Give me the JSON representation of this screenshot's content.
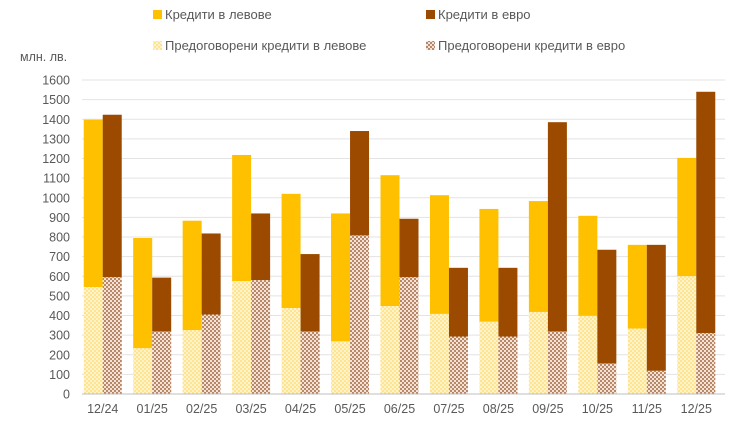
{
  "chart_data": {
    "type": "bar",
    "unit_label": "млн. лв.",
    "categories": [
      "12/24",
      "01/25",
      "02/25",
      "03/25",
      "04/25",
      "05/25",
      "06/25",
      "07/25",
      "08/25",
      "09/25",
      "10/25",
      "11/25",
      "12/25"
    ],
    "ylim": [
      0,
      1600
    ],
    "yticks": [
      0,
      100,
      200,
      300,
      400,
      500,
      600,
      700,
      800,
      900,
      1000,
      1100,
      1200,
      1300,
      1400,
      1500,
      1600
    ],
    "grid": true,
    "legend_position": "top",
    "groups": [
      {
        "name": "Кредити в левове",
        "color": "#FFC000",
        "total": [
          1398,
          795,
          883,
          1218,
          1020,
          920,
          1115,
          1013,
          943,
          983,
          908,
          760,
          1203
        ],
        "component_name": "Предоговорени кредити в левове",
        "component_pattern_color": "#FFE699",
        "component": [
          545,
          233,
          325,
          575,
          438,
          268,
          448,
          408,
          368,
          418,
          398,
          333,
          600
        ]
      },
      {
        "name": "Кредити в евро",
        "color": "#9C4A00",
        "total": [
          1423,
          593,
          818,
          920,
          713,
          1340,
          893,
          643,
          643,
          1385,
          735,
          760,
          1540
        ],
        "component_name": "Предоговорени кредити в евро",
        "component_pattern_color": "#B8784A",
        "component": [
          595,
          318,
          405,
          580,
          318,
          808,
          595,
          293,
          293,
          318,
          155,
          118,
          310
        ]
      }
    ],
    "legend": [
      {
        "label": "Кредити в левове",
        "color": "#FFC000",
        "pattern": false
      },
      {
        "label": "Кредити в евро",
        "color": "#9C4A00",
        "pattern": false
      },
      {
        "label": "Предоговорени кредити в левове",
        "color": "#FFE699",
        "pattern": true
      },
      {
        "label": "Предоговорени кредити в евро",
        "color": "#B8784A",
        "pattern": true
      }
    ]
  }
}
